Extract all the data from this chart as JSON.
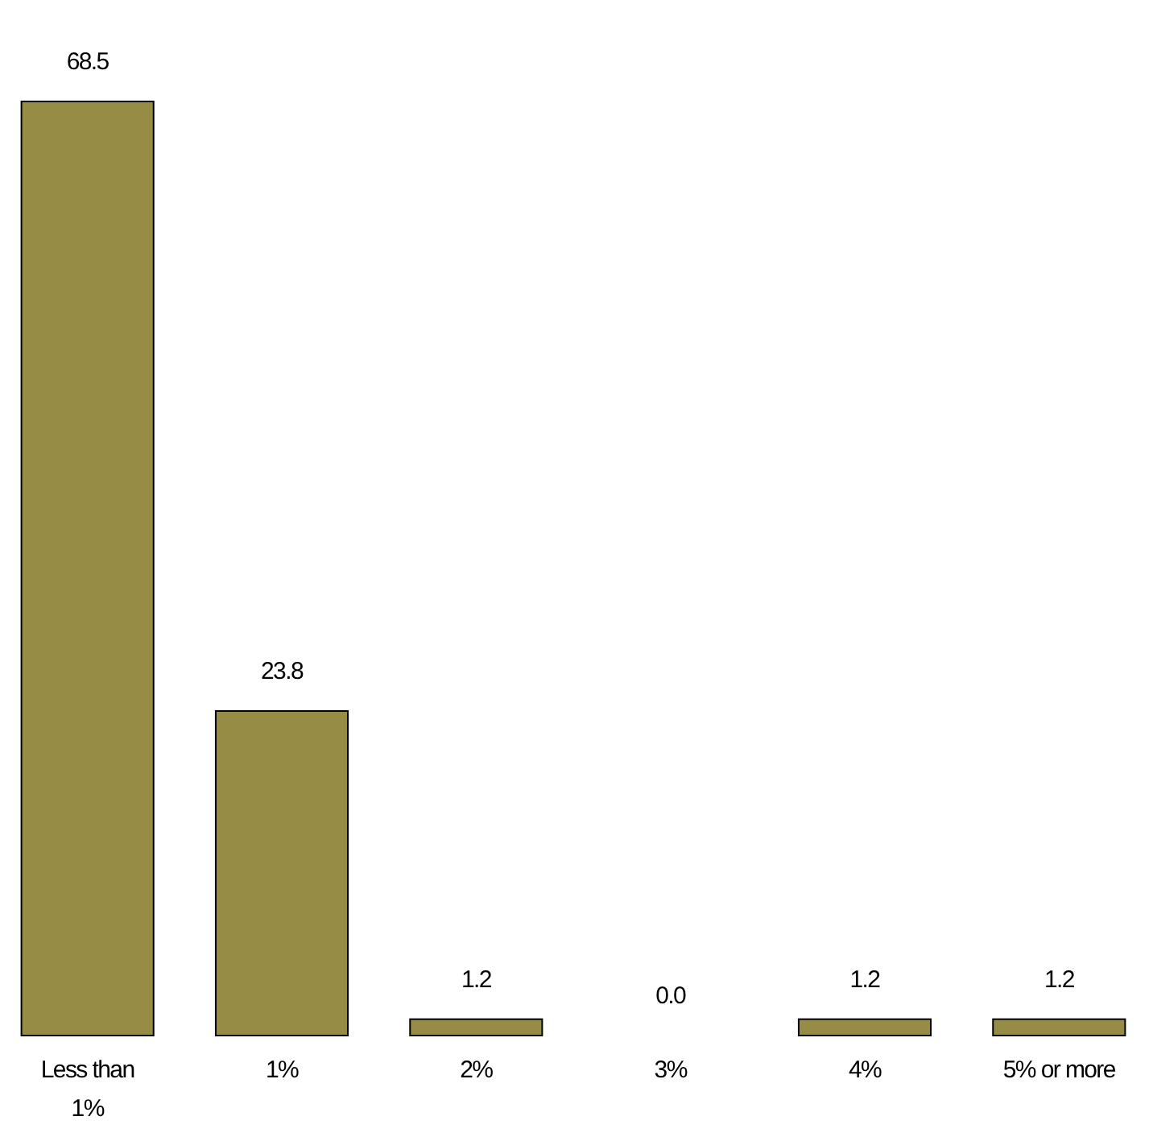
{
  "chart_data": {
    "type": "bar",
    "categories": [
      "Less than 1%",
      "1%",
      "2%",
      "3%",
      "4%",
      "5% or more"
    ],
    "values": [
      68.5,
      23.8,
      1.2,
      0.0,
      1.2,
      1.2
    ],
    "value_labels": [
      "68.5",
      "23.8",
      "1.2",
      "0.0",
      "1.2",
      "1.2"
    ],
    "color": "#968c46"
  }
}
